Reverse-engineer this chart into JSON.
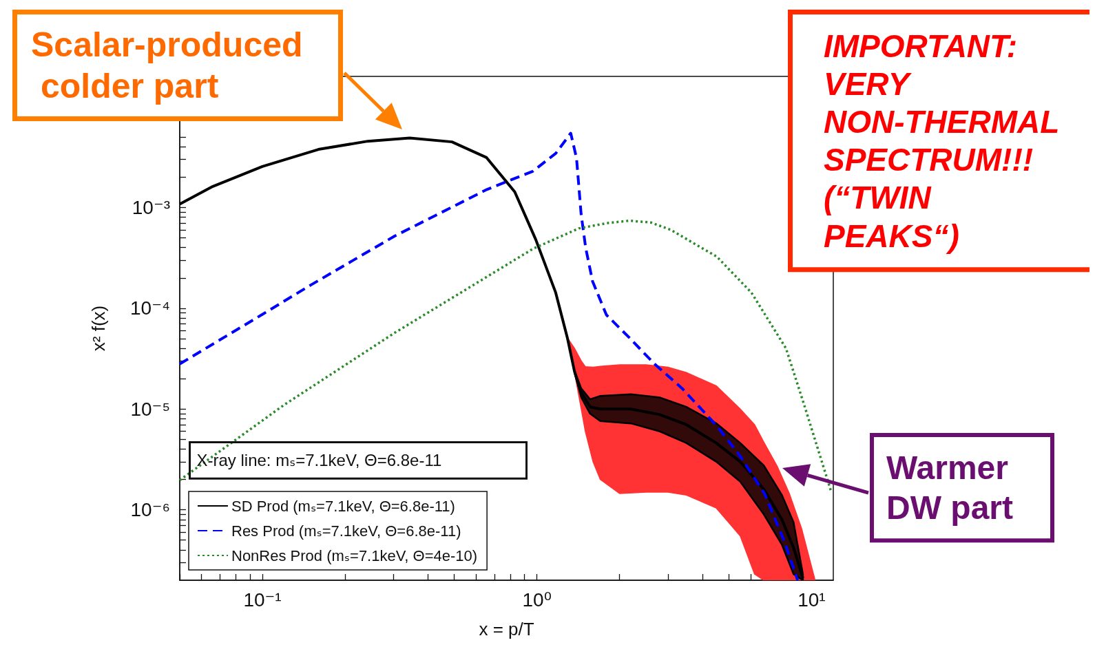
{
  "chart_data": {
    "type": "line",
    "xlabel": "x = p/T",
    "ylabel": "x² f(x)",
    "log": "xy",
    "grid": false,
    "legend": "bottom left",
    "xlim": [
      0.05,
      12
    ],
    "ylim": [
      2e-07,
      0.02
    ],
    "xticks": [
      {
        "value": 0.05,
        "label": null
      },
      {
        "value": 0.06,
        "label": null
      },
      {
        "value": 0.07,
        "label": null
      },
      {
        "value": 0.08,
        "label": null
      },
      {
        "value": 0.09,
        "label": null
      },
      {
        "value": 0.1,
        "label": "10⁻¹"
      },
      {
        "value": 0.2,
        "label": null
      },
      {
        "value": 0.3,
        "label": null
      },
      {
        "value": 0.4,
        "label": null
      },
      {
        "value": 0.5,
        "label": null
      },
      {
        "value": 0.6,
        "label": null
      },
      {
        "value": 0.7,
        "label": null
      },
      {
        "value": 0.8,
        "label": null
      },
      {
        "value": 0.9,
        "label": null
      },
      {
        "value": 1,
        "label": "10⁰"
      },
      {
        "value": 2,
        "label": null
      },
      {
        "value": 3,
        "label": null
      },
      {
        "value": 4,
        "label": null
      },
      {
        "value": 5,
        "label": null
      },
      {
        "value": 6,
        "label": null
      },
      {
        "value": 7,
        "label": null
      },
      {
        "value": 8,
        "label": null
      },
      {
        "value": 9,
        "label": null
      },
      {
        "value": 10,
        "label": "10¹"
      }
    ],
    "yticks": [
      {
        "value": 3e-07,
        "label": null
      },
      {
        "value": 4e-07,
        "label": null
      },
      {
        "value": 5e-07,
        "label": null
      },
      {
        "value": 6e-07,
        "label": null
      },
      {
        "value": 7e-07,
        "label": null
      },
      {
        "value": 8e-07,
        "label": null
      },
      {
        "value": 9e-07,
        "label": null
      },
      {
        "value": 1e-06,
        "label": "10⁻⁶"
      },
      {
        "value": 2e-06,
        "label": null
      },
      {
        "value": 3e-06,
        "label": null
      },
      {
        "value": 4e-06,
        "label": null
      },
      {
        "value": 5e-06,
        "label": null
      },
      {
        "value": 6e-06,
        "label": null
      },
      {
        "value": 7e-06,
        "label": null
      },
      {
        "value": 8e-06,
        "label": null
      },
      {
        "value": 9e-06,
        "label": null
      },
      {
        "value": 1e-05,
        "label": "10⁻⁵"
      },
      {
        "value": 2e-05,
        "label": null
      },
      {
        "value": 3e-05,
        "label": null
      },
      {
        "value": 4e-05,
        "label": null
      },
      {
        "value": 5e-05,
        "label": null
      },
      {
        "value": 6e-05,
        "label": null
      },
      {
        "value": 7e-05,
        "label": null
      },
      {
        "value": 8e-05,
        "label": null
      },
      {
        "value": 9e-05,
        "label": null
      },
      {
        "value": 0.0001,
        "label": "10⁻⁴"
      },
      {
        "value": 0.0002,
        "label": null
      },
      {
        "value": 0.0003,
        "label": null
      },
      {
        "value": 0.0004,
        "label": null
      },
      {
        "value": 0.0005,
        "label": null
      },
      {
        "value": 0.0006,
        "label": null
      },
      {
        "value": 0.0007,
        "label": null
      },
      {
        "value": 0.0008,
        "label": null
      },
      {
        "value": 0.0009,
        "label": null
      },
      {
        "value": 0.001,
        "label": "10⁻³"
      },
      {
        "value": 0.002,
        "label": null
      },
      {
        "value": 0.003,
        "label": null
      },
      {
        "value": 0.004,
        "label": null
      },
      {
        "value": 0.005,
        "label": null
      }
    ],
    "series": [
      {
        "color": "#ff3333",
        "x": [
          1.29,
          1.37,
          1.45,
          1.5,
          1.6,
          1.7,
          2.0,
          2.5,
          3.0,
          3.5,
          4.5,
          5.5,
          6.2,
          6.7,
          7.5,
          8.3,
          9.2,
          10.3
        ],
        "values": [
          null,
          null,
          null,
          null,
          null,
          null,
          null,
          null,
          null,
          null,
          null,
          null,
          null,
          null,
          null,
          null,
          null,
          null
        ],
        "lower": [
          5.1e-05,
          2.3e-05,
          1e-05,
          6e-06,
          3e-06,
          2e-06,
          1.45e-06,
          1.5e-06,
          1.5e-06,
          1.4e-06,
          1.04e-06,
          5.5e-07,
          2.3e-07,
          2e-07,
          2e-07,
          2e-07,
          2e-07,
          2e-07
        ],
        "upper": [
          5.1e-05,
          4e-05,
          3e-05,
          2.63e-05,
          2.6e-05,
          2.65e-05,
          2.75e-05,
          2.75e-05,
          2.6e-05,
          2.3e-05,
          1.7e-05,
          1e-05,
          7e-06,
          4.7e-06,
          2.7e-06,
          1.45e-06,
          6.5e-07,
          2e-07
        ]
      },
      {
        "name": "SD Prod (mₛ=7.1keV, Θ=6.8e-11)",
        "color": "#000000",
        "line_style": "solid",
        "x": [
          0.05,
          0.066,
          0.1,
          0.16,
          0.242,
          0.344,
          0.49,
          0.655,
          0.83,
          0.99,
          1.17,
          1.29,
          1.37,
          1.45,
          1.56,
          1.7,
          2.2,
          2.8,
          3.5,
          4.5,
          5.5,
          6.7,
          7.8,
          8.6,
          9.3
        ],
        "values": [
          0.00108,
          0.00162,
          0.00255,
          0.00377,
          0.00455,
          0.0049,
          0.00448,
          0.00313,
          0.00143,
          0.00048,
          0.000143,
          5.1e-05,
          2.35e-05,
          1.45e-05,
          1.05e-05,
          1e-05,
          1e-05,
          8.8e-06,
          7e-06,
          4.6e-06,
          3e-06,
          1.6e-06,
          8e-07,
          4.2e-07,
          2.1e-07
        ],
        "lower": [
          null,
          null,
          null,
          null,
          null,
          null,
          null,
          null,
          null,
          null,
          null,
          null,
          2.3e-05,
          1.3e-05,
          9e-06,
          7.6e-06,
          7.2e-06,
          6e-06,
          4.6e-06,
          3e-06,
          1.9e-06,
          9e-07,
          4.5e-07,
          2.3e-07,
          2e-07
        ],
        "upper": [
          null,
          null,
          null,
          null,
          null,
          null,
          null,
          null,
          null,
          null,
          null,
          null,
          2.4e-05,
          1.6e-05,
          1.25e-05,
          1.35e-05,
          1.4e-05,
          1.3e-05,
          1.05e-05,
          7.2e-06,
          4.6e-06,
          2.75e-06,
          1.4e-06,
          7.5e-07,
          2.3e-07
        ]
      },
      {
        "name": "Res Prod (mₛ=7.1keV, Θ=6.8e-11)",
        "color": "#0000ff",
        "line_style": "dashed",
        "x": [
          0.05,
          0.1,
          0.15,
          0.303,
          0.657,
          0.966,
          1.17,
          1.327,
          1.393,
          1.448,
          1.504,
          1.594,
          1.79,
          2.17,
          2.68,
          3.38,
          4.5,
          5.5,
          6.74,
          7.95,
          8.9
        ],
        "values": [
          2.8e-05,
          8.7e-05,
          0.00017,
          0.00052,
          0.00151,
          0.00229,
          0.00344,
          0.00546,
          0.0031,
          0.00086,
          0.0004,
          0.000185,
          8.6e-05,
          5.1e-05,
          2.8e-05,
          1.6e-05,
          6.9e-06,
          3.4e-06,
          1.45e-06,
          4.9e-07,
          2e-07
        ]
      },
      {
        "name": "NonRes Prod (mₛ=7.1keV, Θ=4e-10)",
        "color": "#2a8a2a",
        "line_style": "dotted",
        "x": [
          0.05,
          0.12,
          0.303,
          0.968,
          1.42,
          1.8,
          2.17,
          2.6,
          3.07,
          4.52,
          6.04,
          8.07,
          9.4,
          11.8
        ],
        "values": [
          1.97e-06,
          1.1e-05,
          5.7e-05,
          0.00039,
          0.00062,
          0.0007,
          0.00074,
          0.00071,
          0.0006,
          0.000325,
          0.000143,
          4e-05,
          1.1e-05,
          1.5e-06
        ]
      }
    ],
    "annotations": [
      "Scalar-produced colder part",
      "IMPORTANT: VERY NON-THERMAL SPECTRUM!!! (“TWIN PEAKS“)",
      "Warmer DW part",
      "X-ray line: mₛ=7.1keV, Θ=6.8e-11"
    ]
  }
}
